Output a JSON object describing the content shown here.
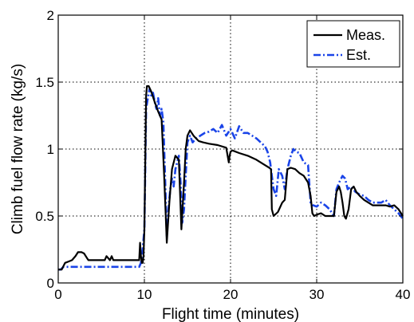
{
  "chart_data": {
    "type": "line",
    "title": "",
    "xlabel": "Flight time (minutes)",
    "ylabel": "Climb fuel flow rate (kg/s)",
    "xlim": [
      0,
      40
    ],
    "ylim": [
      0,
      2
    ],
    "xticks": [
      0,
      10,
      20,
      30,
      40
    ],
    "yticks": [
      0,
      0.5,
      1,
      1.5,
      2
    ],
    "xtick_labels": [
      "0",
      "10",
      "20",
      "30",
      "40"
    ],
    "ytick_labels": [
      "0",
      "0.5",
      "1",
      "1.5",
      "2"
    ],
    "grid": true,
    "legend_position": "top-right",
    "series": [
      {
        "name": "Meas.",
        "color": "#000000",
        "style": "solid",
        "x": [
          0,
          0.4,
          0.8,
          1.2,
          1.6,
          2.0,
          2.3,
          2.7,
          3.0,
          3.3,
          3.5,
          4.0,
          5.0,
          5.4,
          5.6,
          6.0,
          6.2,
          6.4,
          6.6,
          7.0,
          8.0,
          9.0,
          9.4,
          9.5,
          9.6,
          9.7,
          9.8,
          9.9,
          10.0,
          10.1,
          10.2,
          10.3,
          10.5,
          10.8,
          11.2,
          11.6,
          12.0,
          12.3,
          12.6,
          12.9,
          13.2,
          13.6,
          14.0,
          14.3,
          14.6,
          14.8,
          15.0,
          15.3,
          15.5,
          15.7,
          16.0,
          16.3,
          16.8,
          17.5,
          18.5,
          19.5,
          19.8,
          19.9,
          20.0,
          20.2,
          21,
          22,
          23,
          24,
          24.5,
          24.7,
          24.8,
          25.0,
          25.5,
          26.0,
          26.3,
          26.6,
          27.0,
          27.5,
          28.0,
          28.5,
          29.0,
          29.3,
          29.5,
          29.7,
          30.0,
          30.5,
          31.0,
          31.5,
          32.0,
          32.3,
          32.6,
          32.8,
          33.0,
          33.2,
          33.4,
          33.7,
          34.0,
          34.3,
          34.6,
          35.0,
          35.5,
          36.0,
          36.5,
          37.0,
          37.5,
          38.0,
          38.5,
          39.0,
          39.5,
          40.0
        ],
        "values": [
          0.1,
          0.1,
          0.15,
          0.16,
          0.17,
          0.2,
          0.23,
          0.23,
          0.22,
          0.19,
          0.17,
          0.17,
          0.17,
          0.17,
          0.2,
          0.17,
          0.2,
          0.17,
          0.17,
          0.17,
          0.17,
          0.17,
          0.17,
          0.3,
          0.2,
          0.15,
          0.15,
          0.2,
          0.4,
          0.9,
          1.4,
          1.47,
          1.47,
          1.43,
          1.35,
          1.28,
          1.22,
          0.8,
          0.3,
          0.6,
          0.85,
          0.95,
          0.92,
          0.4,
          0.75,
          1.0,
          1.1,
          1.14,
          1.12,
          1.1,
          1.08,
          1.06,
          1.05,
          1.04,
          1.03,
          1.01,
          0.9,
          0.95,
          0.98,
          0.99,
          0.97,
          0.95,
          0.92,
          0.88,
          0.86,
          0.85,
          0.55,
          0.5,
          0.53,
          0.6,
          0.62,
          0.85,
          0.86,
          0.85,
          0.82,
          0.8,
          0.75,
          0.65,
          0.52,
          0.5,
          0.51,
          0.52,
          0.5,
          0.5,
          0.5,
          0.68,
          0.72,
          0.68,
          0.6,
          0.5,
          0.48,
          0.55,
          0.7,
          0.72,
          0.68,
          0.65,
          0.62,
          0.6,
          0.58,
          0.58,
          0.58,
          0.58,
          0.57,
          0.58,
          0.55,
          0.5
        ]
      },
      {
        "name": "Est.",
        "color": "#1a44e8",
        "style": "dashdot",
        "x": [
          0,
          0.3,
          0.6,
          1.0,
          2.0,
          4.0,
          6.0,
          8.0,
          9.4,
          9.6,
          9.8,
          10.0,
          10.2,
          10.4,
          10.6,
          10.8,
          11.0,
          11.2,
          11.4,
          11.6,
          11.8,
          12.0,
          12.2,
          12.4,
          12.6,
          12.8,
          13.0,
          13.2,
          13.4,
          13.6,
          13.8,
          14.0,
          14.2,
          14.4,
          14.6,
          14.8,
          15.0,
          15.3,
          15.6,
          16.0,
          16.5,
          17.0,
          17.5,
          18.0,
          18.5,
          19.0,
          19.5,
          20.0,
          20.5,
          21.0,
          21.5,
          22.0,
          22.5,
          23.0,
          23.5,
          24.0,
          24.3,
          24.6,
          24.8,
          25.0,
          25.3,
          25.6,
          26.0,
          26.3,
          26.6,
          27.0,
          27.3,
          27.6,
          28.0,
          28.5,
          29.0,
          29.3,
          29.6,
          30.0,
          30.5,
          31.0,
          31.5,
          32.0,
          32.3,
          32.6,
          33.0,
          33.3,
          33.6,
          34.0,
          34.5,
          35.0,
          35.5,
          36.0,
          36.5,
          37.0,
          37.5,
          38.0,
          38.5,
          39.0,
          39.5,
          40.0
        ],
        "values": [
          0.1,
          0.1,
          0.12,
          0.12,
          0.12,
          0.12,
          0.12,
          0.12,
          0.12,
          0.15,
          0.25,
          0.4,
          1.3,
          1.38,
          1.45,
          1.4,
          1.42,
          1.35,
          1.3,
          1.38,
          1.25,
          1.3,
          1.2,
          0.8,
          0.35,
          0.55,
          0.7,
          0.78,
          0.72,
          0.85,
          0.9,
          0.95,
          0.75,
          0.45,
          0.55,
          0.8,
          1.05,
          1.1,
          1.05,
          1.08,
          1.1,
          1.12,
          1.13,
          1.15,
          1.12,
          1.18,
          1.1,
          1.15,
          1.08,
          1.17,
          1.12,
          1.12,
          1.1,
          1.08,
          1.05,
          1.02,
          0.98,
          0.9,
          0.8,
          0.7,
          0.65,
          0.85,
          0.8,
          0.7,
          0.85,
          0.95,
          1.0,
          0.98,
          0.97,
          0.9,
          0.88,
          0.6,
          0.58,
          0.57,
          0.6,
          0.58,
          0.55,
          0.5,
          0.7,
          0.75,
          0.8,
          0.78,
          0.7,
          0.72,
          0.68,
          0.66,
          0.65,
          0.62,
          0.6,
          0.6,
          0.6,
          0.62,
          0.58,
          0.55,
          0.52,
          0.48
        ]
      }
    ]
  }
}
